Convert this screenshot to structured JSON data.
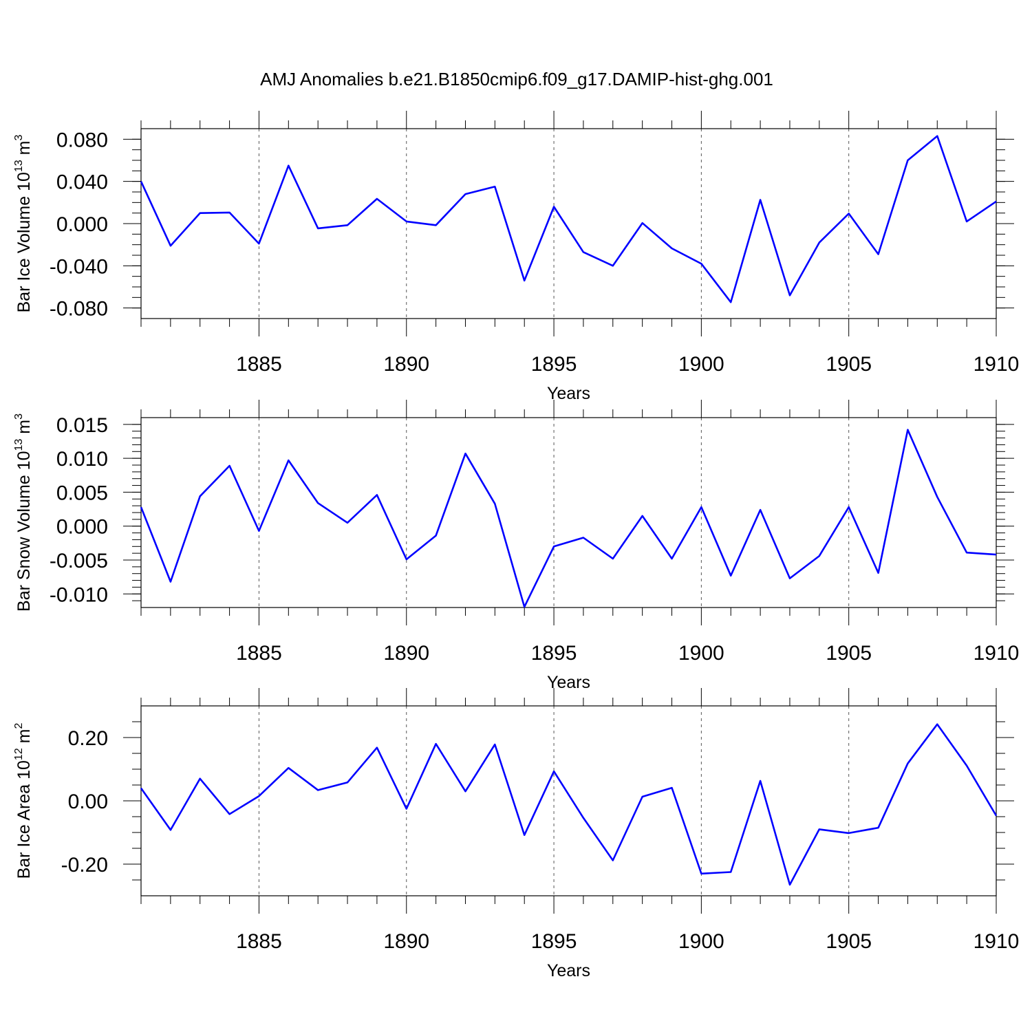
{
  "title": "AMJ Anomalies b.e21.B1850cmip6.f09_g17.DAMIP-hist-ghg.001",
  "line_color": "#0000ff",
  "chart_data": [
    {
      "type": "line",
      "name": "ice-volume",
      "ylabel": {
        "base": "Bar Ice Volume 10",
        "exp": "13",
        "unit": " m",
        "unit_exp": "3"
      },
      "xlabel": "Years",
      "xlim": [
        1881,
        1910
      ],
      "ylim": [
        -0.09,
        0.09
      ],
      "major_yticks": [
        -0.08,
        -0.04,
        0.0,
        0.04,
        0.08
      ],
      "ytick_labels": [
        "-0.080",
        "-0.040",
        "0.000",
        "0.040",
        "0.080"
      ],
      "minor_ystep": 0.01,
      "x": [
        1881,
        1882,
        1883,
        1884,
        1885,
        1886,
        1887,
        1888,
        1889,
        1890,
        1891,
        1892,
        1893,
        1894,
        1895,
        1896,
        1897,
        1898,
        1899,
        1900,
        1901,
        1902,
        1903,
        1904,
        1905,
        1906,
        1907,
        1908,
        1909,
        1910
      ],
      "series": [
        {
          "name": "Bar Ice Volume",
          "values": [
            0.04,
            -0.021,
            0.01,
            0.0105,
            -0.019,
            0.055,
            -0.0045,
            -0.0015,
            0.0235,
            0.002,
            -0.0015,
            0.028,
            0.035,
            -0.054,
            0.016,
            -0.027,
            -0.04,
            0.0005,
            -0.0235,
            -0.038,
            -0.0745,
            0.0225,
            -0.068,
            -0.018,
            0.0095,
            -0.029,
            0.06,
            0.083,
            0.002,
            0.021
          ]
        }
      ]
    },
    {
      "type": "line",
      "name": "snow-volume",
      "ylabel": {
        "base": "Bar Snow Volume 10",
        "exp": "13",
        "unit": " m",
        "unit_exp": "3"
      },
      "xlabel": "Years",
      "xlim": [
        1881,
        1910
      ],
      "ylim": [
        -0.012,
        0.016
      ],
      "major_yticks": [
        -0.01,
        -0.005,
        0.0,
        0.005,
        0.01,
        0.015
      ],
      "ytick_labels": [
        "-0.010",
        "-0.005",
        "0.000",
        "0.005",
        "0.010",
        "0.015"
      ],
      "minor_ystep": 0.001,
      "x": [
        1881,
        1882,
        1883,
        1884,
        1885,
        1886,
        1887,
        1888,
        1889,
        1890,
        1891,
        1892,
        1893,
        1894,
        1895,
        1896,
        1897,
        1898,
        1899,
        1900,
        1901,
        1902,
        1903,
        1904,
        1905,
        1906,
        1907,
        1908,
        1909,
        1910
      ],
      "series": [
        {
          "name": "Bar Snow Volume",
          "values": [
            0.0028,
            -0.0082,
            0.0044,
            0.0089,
            -0.0007,
            0.0097,
            0.0034,
            0.0005,
            0.0046,
            -0.0049,
            -0.0014,
            0.0107,
            0.0033,
            -0.0119,
            -0.003,
            -0.0017,
            -0.0048,
            0.0015,
            -0.0048,
            0.0028,
            -0.0073,
            0.0024,
            -0.0077,
            -0.0044,
            0.0028,
            -0.0069,
            0.0142,
            0.0043,
            -0.0039,
            -0.0042
          ]
        }
      ]
    },
    {
      "type": "line",
      "name": "ice-area",
      "ylabel": {
        "base": "Bar Ice Area 10",
        "exp": "12",
        "unit": " m",
        "unit_exp": "2"
      },
      "xlabel": "Years",
      "xlim": [
        1881,
        1910
      ],
      "ylim": [
        -0.3,
        0.3
      ],
      "major_yticks": [
        -0.2,
        0.0,
        0.2
      ],
      "ytick_labels": [
        "-0.20",
        "0.00",
        "0.20"
      ],
      "minor_ystep": 0.05,
      "x": [
        1881,
        1882,
        1883,
        1884,
        1885,
        1886,
        1887,
        1888,
        1889,
        1890,
        1891,
        1892,
        1893,
        1894,
        1895,
        1896,
        1897,
        1898,
        1899,
        1900,
        1901,
        1902,
        1903,
        1904,
        1905,
        1906,
        1907,
        1908,
        1909,
        1910
      ],
      "series": [
        {
          "name": "Bar Ice Area",
          "values": [
            0.04,
            -0.092,
            0.07,
            -0.042,
            0.015,
            0.104,
            0.034,
            0.058,
            0.168,
            -0.025,
            0.18,
            0.03,
            0.178,
            -0.108,
            0.093,
            -0.054,
            -0.188,
            0.013,
            0.041,
            -0.23,
            -0.225,
            0.063,
            -0.265,
            -0.09,
            -0.102,
            -0.085,
            0.118,
            0.242,
            0.111,
            -0.047
          ]
        }
      ]
    }
  ],
  "xtick_labels": [
    "1885",
    "1890",
    "1895",
    "1900",
    "1905",
    "1910"
  ]
}
